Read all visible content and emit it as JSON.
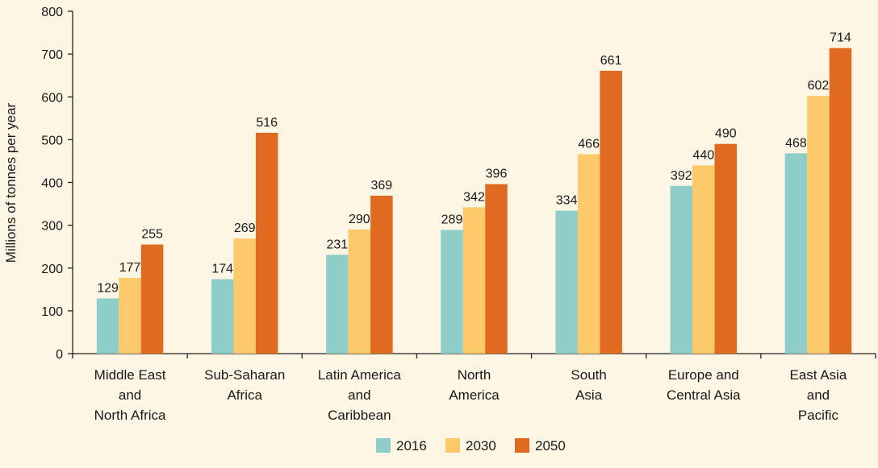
{
  "chart_data": {
    "type": "bar",
    "title": "",
    "xlabel": "",
    "ylabel": "Millions of tonnes per year",
    "ylim": [
      0,
      800
    ],
    "yticks": [
      0,
      100,
      200,
      300,
      400,
      500,
      600,
      700,
      800
    ],
    "grid": false,
    "legend_position": "bottom",
    "categories": [
      [
        "Middle East",
        "and",
        "North Africa"
      ],
      [
        "Sub-Saharan",
        "Africa"
      ],
      [
        "Latin America",
        "and",
        "Caribbean"
      ],
      [
        "North",
        "America"
      ],
      [
        "South",
        "Asia"
      ],
      [
        "Europe and",
        "Central Asia"
      ],
      [
        "East Asia",
        "and",
        "Pacific"
      ]
    ],
    "series": [
      {
        "name": "2016",
        "color": "#8ecdc8",
        "values": [
          129,
          174,
          231,
          289,
          334,
          392,
          468
        ]
      },
      {
        "name": "2030",
        "color": "#fdc96b",
        "values": [
          177,
          269,
          290,
          342,
          466,
          440,
          602
        ]
      },
      {
        "name": "2050",
        "color": "#e06a1f",
        "values": [
          255,
          516,
          369,
          396,
          661,
          490,
          714
        ]
      }
    ]
  }
}
